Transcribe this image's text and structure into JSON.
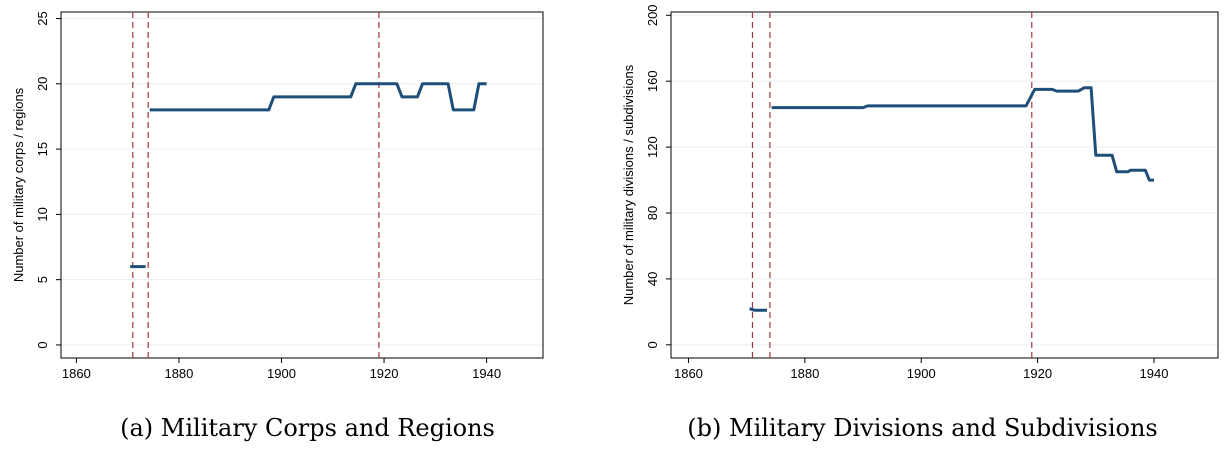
{
  "chart_data": [
    {
      "type": "line",
      "caption": "(a) Military Corps and Regions",
      "xlabel": "",
      "ylabel": "Number of military corps / regions",
      "xlim": [
        1857,
        1951
      ],
      "ylim": [
        -1,
        25.5
      ],
      "xticks": [
        1860,
        1880,
        1900,
        1920,
        1940
      ],
      "yticks": [
        0,
        5,
        10,
        15,
        20,
        25
      ],
      "grid": "horizontal",
      "line_color": "#1f4e79",
      "ref_line_color": "#a0373d",
      "vlines": [
        1871,
        1874,
        1919
      ],
      "series": [
        {
          "x": [
            1870.5,
            1873.5
          ],
          "y": [
            6,
            6
          ]
        },
        {
          "x": [
            1874.3,
            1897.5,
            1898.5,
            1913.5,
            1914.5,
            1922.5,
            1923.5,
            1926.5,
            1927.5,
            1932.5,
            1933.5,
            1937.5,
            1938.5,
            1940
          ],
          "y": [
            18,
            18,
            19,
            19,
            20,
            20,
            19,
            19,
            20,
            20,
            18,
            18,
            20,
            20
          ]
        }
      ]
    },
    {
      "type": "line",
      "caption": "(b) Military Divisions and Subdivisions",
      "xlabel": "",
      "ylabel": "Number of military divisions / subdivisions",
      "xlim": [
        1857,
        1951
      ],
      "ylim": [
        -8,
        202
      ],
      "xticks": [
        1860,
        1880,
        1900,
        1920,
        1940
      ],
      "yticks": [
        0,
        40,
        80,
        120,
        160,
        200
      ],
      "grid": "horizontal",
      "line_color": "#1f4e79",
      "ref_line_color": "#a0373d",
      "vlines": [
        1871,
        1874,
        1919
      ],
      "series": [
        {
          "x": [
            1870.5,
            1871.3,
            1873.5
          ],
          "y": [
            22,
            21,
            21
          ]
        },
        {
          "x": [
            1874.3,
            1890,
            1890.8,
            1918,
            1919.5,
            1922.5,
            1923.3,
            1927,
            1928,
            1929.2,
            1930,
            1932.8,
            1933.6,
            1935.5,
            1936,
            1938.5,
            1939.2,
            1940
          ],
          "y": [
            144,
            144,
            145,
            145,
            155,
            155,
            154,
            154,
            156,
            156,
            115,
            115,
            105,
            105,
            106,
            106,
            100,
            100
          ]
        }
      ]
    }
  ]
}
